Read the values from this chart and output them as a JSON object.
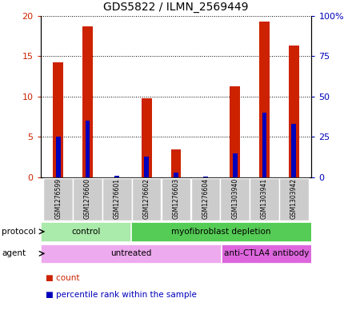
{
  "title": "GDS5822 / ILMN_2569449",
  "samples": [
    "GSM1276599",
    "GSM1276600",
    "GSM1276601",
    "GSM1276602",
    "GSM1276603",
    "GSM1276604",
    "GSM1303940",
    "GSM1303941",
    "GSM1303942"
  ],
  "counts": [
    14.2,
    18.7,
    0.05,
    9.8,
    3.5,
    0.05,
    11.3,
    19.3,
    16.3
  ],
  "percentile_ranks_pct": [
    25,
    35,
    1,
    13,
    3,
    0.5,
    15,
    40,
    33
  ],
  "ylim_left": [
    0,
    20
  ],
  "ylim_right": [
    0,
    100
  ],
  "yticks_left": [
    0,
    5,
    10,
    15,
    20
  ],
  "yticks_right": [
    0,
    25,
    50,
    75,
    100
  ],
  "ytick_labels_left": [
    "0",
    "5",
    "10",
    "15",
    "20"
  ],
  "ytick_labels_right": [
    "0",
    "25",
    "50",
    "75",
    "100%"
  ],
  "bar_color": "#cc2200",
  "blue_color": "#0000bb",
  "bg_color": "#e8e8e8",
  "plot_bg": "#ffffff",
  "bar_width": 0.35,
  "protocol_groups": [
    {
      "label": "control",
      "start": 0,
      "end": 3,
      "color": "#aaeaaa"
    },
    {
      "label": "myofibroblast depletion",
      "start": 3,
      "end": 9,
      "color": "#55cc55"
    }
  ],
  "agent_groups": [
    {
      "label": "untreated",
      "start": 0,
      "end": 6,
      "color": "#eeaaee"
    },
    {
      "label": "anti-CTLA4 antibody",
      "start": 6,
      "end": 9,
      "color": "#dd66dd"
    }
  ],
  "legend_items": [
    {
      "label": "count",
      "color": "#cc2200"
    },
    {
      "label": "percentile rank within the sample",
      "color": "#0000bb"
    }
  ]
}
